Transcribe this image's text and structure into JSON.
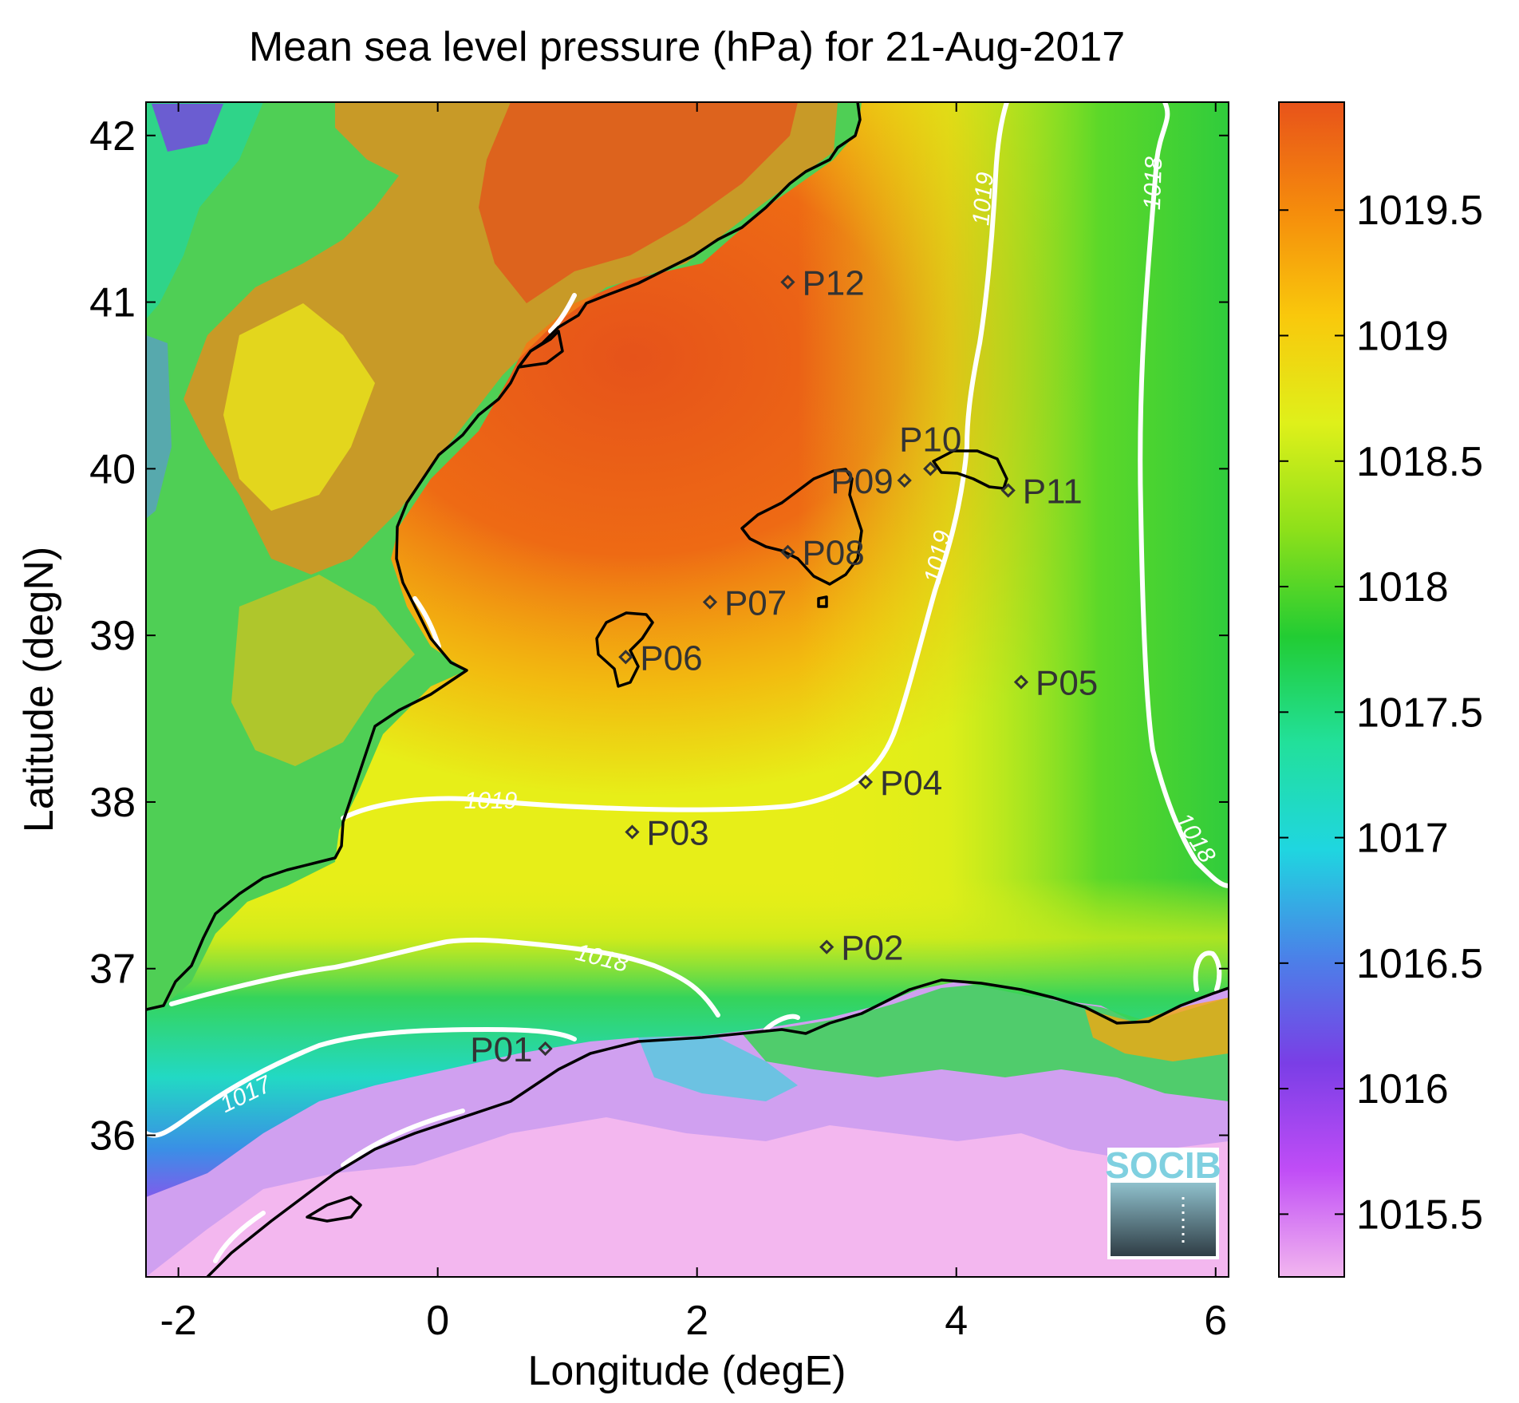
{
  "chart_data": {
    "type": "heatmap",
    "title": "Mean sea level pressure (hPa) for 21-Aug-2017",
    "xlabel": "Longitude (degE)",
    "ylabel": "Latitude (degN)",
    "xlim": [
      -2.25,
      6.1
    ],
    "ylim": [
      35.15,
      42.2
    ],
    "x_ticks": [
      -2,
      0,
      2,
      4,
      6
    ],
    "x_tick_labels": [
      "-2",
      "0",
      "2",
      "4",
      "6"
    ],
    "y_ticks": [
      36,
      37,
      38,
      39,
      40,
      41,
      42
    ],
    "y_tick_labels": [
      "36",
      "37",
      "38",
      "39",
      "40",
      "41",
      "42"
    ],
    "colorbar": {
      "label": "",
      "range": [
        1015.25,
        1019.93
      ],
      "ticks": [
        1015.5,
        1016,
        1016.5,
        1017,
        1017.5,
        1018,
        1018.5,
        1019,
        1019.5
      ],
      "tick_labels": [
        "1015.5",
        "1016",
        "1016.5",
        "1017",
        "1017.5",
        "1018",
        "1018.5",
        "1019",
        "1019.5"
      ],
      "colormap": [
        "#f2b6ef",
        "#c04df6",
        "#7a3ee6",
        "#4a82e8",
        "#1fd6e0",
        "#22e09a",
        "#22cc33",
        "#8ee01a",
        "#dff01a",
        "#f9c80c",
        "#f58b0c",
        "#e8531a"
      ]
    },
    "stations": [
      {
        "name": "P01",
        "lon": 0.83,
        "lat": 36.52
      },
      {
        "name": "P02",
        "lon": 3.0,
        "lat": 37.13
      },
      {
        "name": "P03",
        "lon": 1.5,
        "lat": 37.82
      },
      {
        "name": "P04",
        "lon": 3.3,
        "lat": 38.12
      },
      {
        "name": "P05",
        "lon": 4.5,
        "lat": 38.72
      },
      {
        "name": "P06",
        "lon": 1.45,
        "lat": 38.87
      },
      {
        "name": "P07",
        "lon": 2.1,
        "lat": 39.2
      },
      {
        "name": "P08",
        "lon": 2.7,
        "lat": 39.5
      },
      {
        "name": "P09",
        "lon": 3.6,
        "lat": 39.93
      },
      {
        "name": "P10",
        "lon": 3.8,
        "lat": 40.0
      },
      {
        "name": "P11",
        "lon": 4.4,
        "lat": 39.87
      },
      {
        "name": "P12",
        "lon": 2.7,
        "lat": 41.12
      }
    ],
    "contour_labels": [
      "1019",
      "1019",
      "1019",
      "1018",
      "1018",
      "1018",
      "1017"
    ],
    "grid": false
  },
  "logo": {
    "text": "SOCIB"
  },
  "colors": {
    "contour": "#ffffff",
    "coastline": "#000000",
    "station_marker": "#333333"
  }
}
